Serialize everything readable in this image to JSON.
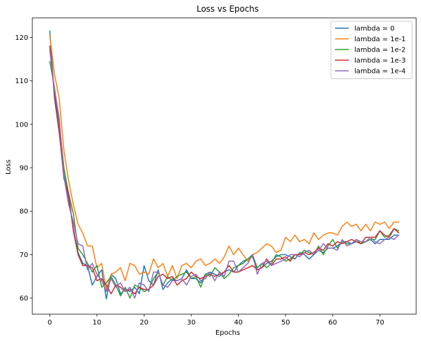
{
  "chart_data": {
    "type": "line",
    "title": "Loss vs Epochs",
    "xlabel": "Epochs",
    "ylabel": "Loss",
    "xlim": [
      -3.7,
      77.7
    ],
    "ylim": [
      56.3,
      124.5
    ],
    "xticks": [
      0,
      10,
      20,
      30,
      40,
      50,
      60,
      70
    ],
    "yticks": [
      60,
      70,
      80,
      90,
      100,
      110,
      120
    ],
    "grid": false,
    "legend_position": "top-right",
    "series": [
      {
        "name": "lambda = 0",
        "color": "#1f77b4",
        "values": [
          121.5,
          106.0,
          98.0,
          88.5,
          83.0,
          76.0,
          70.5,
          68.0,
          67.5,
          63.0,
          65.0,
          66.5,
          59.8,
          65.5,
          64.5,
          61.0,
          62.0,
          61.5,
          62.5,
          61.0,
          67.5,
          64.0,
          63.0,
          66.5,
          62.0,
          63.5,
          64.5,
          64.0,
          64.5,
          66.5,
          64.5,
          64.5,
          63.5,
          65.5,
          66.0,
          65.5,
          65.0,
          66.0,
          66.5,
          66.0,
          67.5,
          68.5,
          69.0,
          69.5,
          66.5,
          67.0,
          68.0,
          68.5,
          69.5,
          70.0,
          70.0,
          69.5,
          69.0,
          70.5,
          70.0,
          69.0,
          70.0,
          71.0,
          70.5,
          71.5,
          71.5,
          72.0,
          73.0,
          73.0,
          72.5,
          73.0,
          72.5,
          73.0,
          73.5,
          72.5,
          73.5,
          73.5,
          73.5,
          74.5,
          74.5
        ]
      },
      {
        "name": "lambda = 1e-1",
        "color": "#ff7f0e",
        "values": [
          120.5,
          111.5,
          106.0,
          94.0,
          87.0,
          81.5,
          77.0,
          75.0,
          72.0,
          72.0,
          67.0,
          68.0,
          62.0,
          65.5,
          66.0,
          67.0,
          64.0,
          68.0,
          67.5,
          65.5,
          66.0,
          65.5,
          69.0,
          67.0,
          68.0,
          65.0,
          67.5,
          64.5,
          67.5,
          68.0,
          67.0,
          68.5,
          69.0,
          67.5,
          68.0,
          69.0,
          68.0,
          69.5,
          72.0,
          70.0,
          71.5,
          70.0,
          68.5,
          70.0,
          70.5,
          71.5,
          72.5,
          72.0,
          70.5,
          71.0,
          74.0,
          73.0,
          74.5,
          73.0,
          73.5,
          72.5,
          75.0,
          73.5,
          74.5,
          75.0,
          75.0,
          74.5,
          76.5,
          77.5,
          76.5,
          77.0,
          75.5,
          77.0,
          75.5,
          77.5,
          77.0,
          77.5,
          76.0,
          77.5,
          77.5
        ]
      },
      {
        "name": "lambda = 1e-2",
        "color": "#2ca02c",
        "values": [
          114.5,
          108.5,
          100.5,
          90.0,
          84.0,
          79.5,
          71.5,
          70.0,
          68.0,
          66.0,
          67.5,
          62.5,
          63.5,
          65.0,
          63.0,
          60.5,
          62.5,
          60.0,
          63.0,
          62.5,
          61.5,
          62.0,
          64.5,
          66.0,
          63.0,
          65.0,
          64.0,
          65.0,
          65.5,
          66.0,
          64.5,
          65.0,
          62.5,
          65.5,
          65.0,
          67.0,
          66.0,
          64.5,
          65.5,
          67.0,
          67.5,
          68.0,
          69.0,
          70.0,
          67.0,
          68.0,
          67.0,
          68.0,
          70.0,
          69.5,
          68.5,
          69.0,
          70.0,
          70.0,
          71.0,
          70.5,
          70.0,
          72.0,
          70.0,
          72.0,
          73.5,
          71.5,
          73.0,
          72.5,
          72.5,
          73.5,
          72.5,
          73.0,
          73.5,
          73.5,
          75.5,
          74.0,
          74.5,
          76.0,
          75.5
        ]
      },
      {
        "name": "lambda = 1e-3",
        "color": "#d62728",
        "values": [
          118.0,
          107.0,
          98.5,
          87.5,
          84.0,
          75.5,
          70.0,
          67.5,
          67.5,
          67.0,
          64.0,
          64.5,
          63.0,
          61.0,
          63.0,
          62.5,
          61.5,
          62.0,
          61.0,
          62.5,
          62.0,
          62.0,
          63.0,
          65.0,
          65.5,
          64.5,
          65.0,
          63.0,
          64.0,
          64.5,
          66.0,
          65.0,
          64.5,
          65.0,
          65.5,
          65.0,
          65.5,
          66.0,
          67.5,
          66.0,
          66.0,
          66.5,
          67.0,
          67.5,
          66.5,
          67.0,
          69.0,
          67.5,
          69.0,
          69.0,
          69.5,
          68.5,
          70.0,
          70.0,
          70.5,
          70.0,
          70.5,
          71.5,
          71.0,
          72.5,
          72.0,
          73.0,
          72.5,
          73.0,
          73.5,
          73.0,
          72.5,
          74.0,
          74.0,
          74.0,
          75.5,
          74.5,
          74.0,
          76.0,
          75.0
        ]
      },
      {
        "name": "lambda = 1e-4",
        "color": "#9467bd",
        "values": [
          117.0,
          108.0,
          101.5,
          88.0,
          81.5,
          77.5,
          72.5,
          72.0,
          66.5,
          68.0,
          65.5,
          64.0,
          61.5,
          64.5,
          62.5,
          63.5,
          61.5,
          62.5,
          60.0,
          63.5,
          63.0,
          61.5,
          66.0,
          66.0,
          63.0,
          62.5,
          64.0,
          64.0,
          64.5,
          63.0,
          65.0,
          65.5,
          64.0,
          64.5,
          66.0,
          64.0,
          66.0,
          65.0,
          68.5,
          68.5,
          66.0,
          67.0,
          68.0,
          70.0,
          65.5,
          68.0,
          68.5,
          67.5,
          68.0,
          68.5,
          69.0,
          70.0,
          70.0,
          69.5,
          70.5,
          71.0,
          70.0,
          71.0,
          72.5,
          71.5,
          71.5,
          71.0,
          73.5,
          72.0,
          72.5,
          73.5,
          73.0,
          73.0,
          74.0,
          73.0,
          72.5,
          73.5,
          74.0,
          73.5,
          74.5
        ]
      }
    ]
  }
}
